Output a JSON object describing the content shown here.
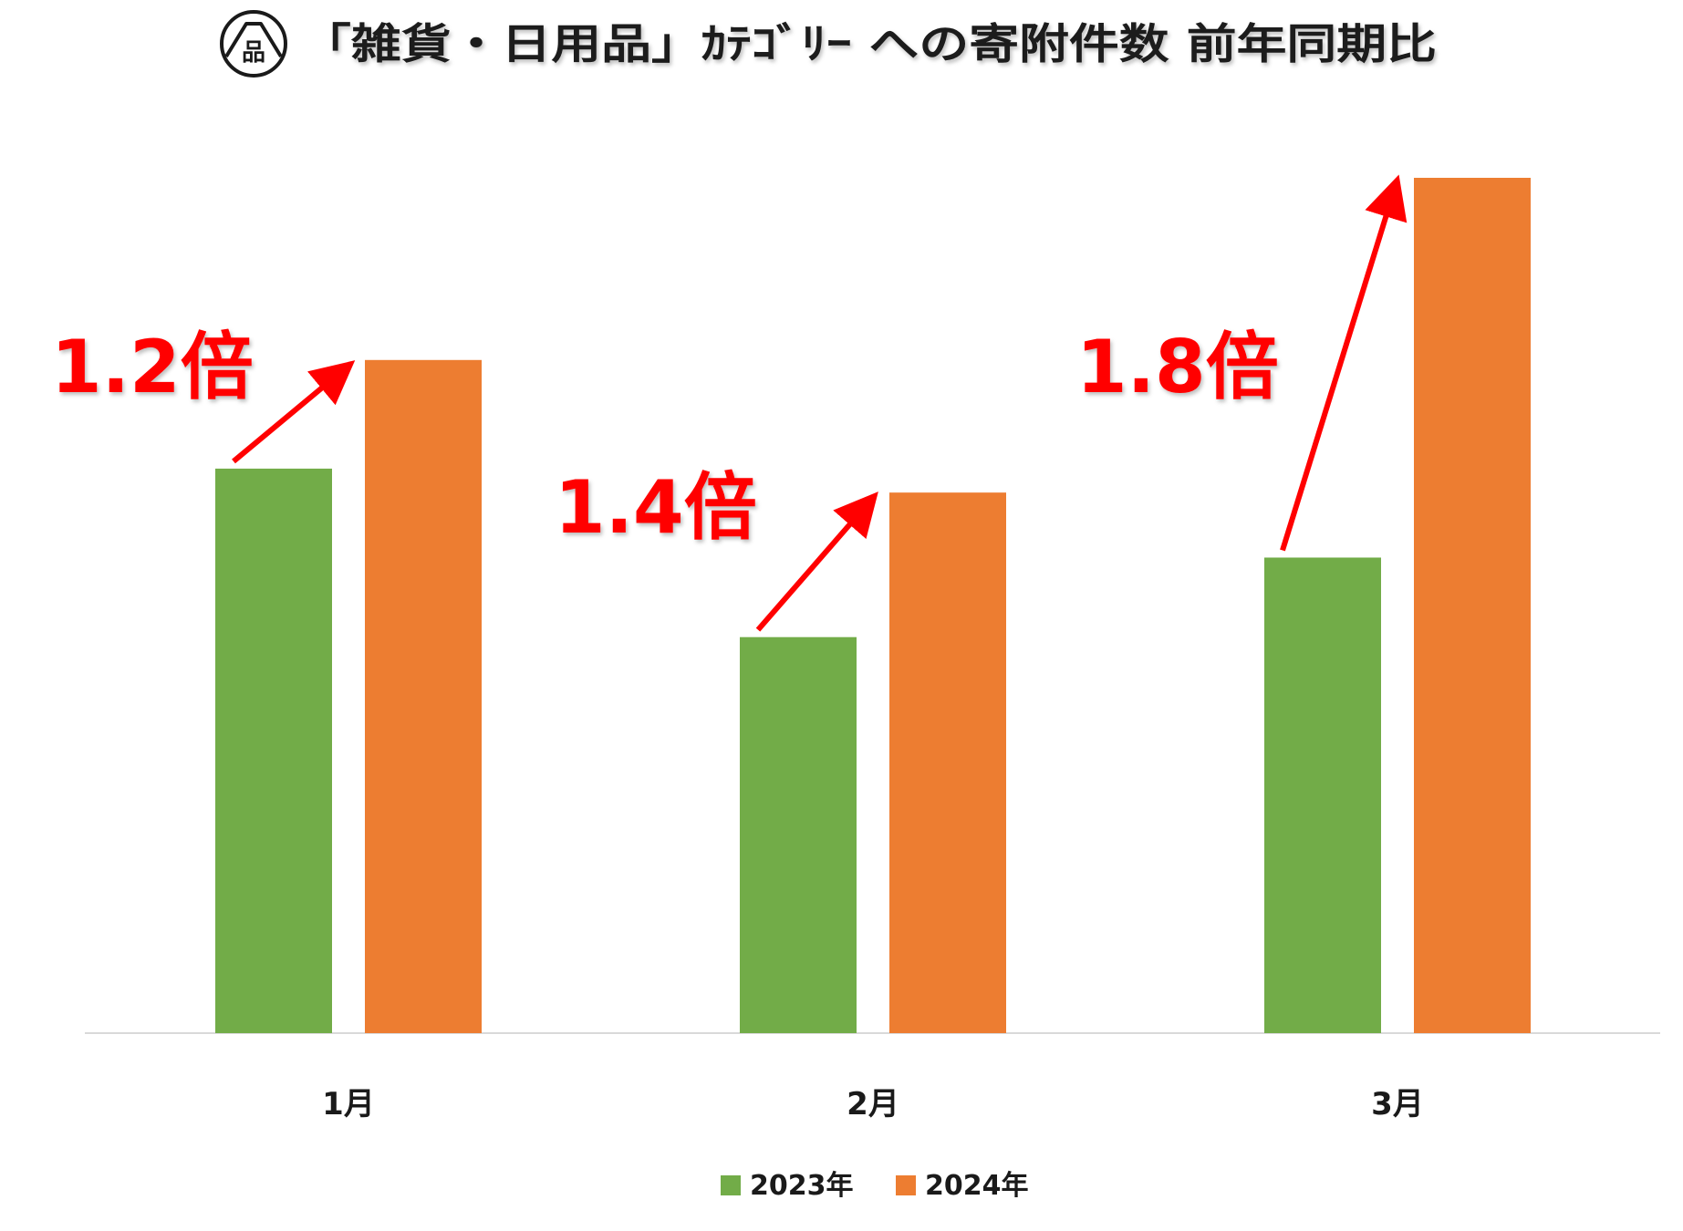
{
  "colors": {
    "series_2023": "#72ac48",
    "series_2024": "#ed7d31",
    "arrow": "#ff0000",
    "axis_line": "#d9d9d9",
    "logo": "#1a1a1a"
  },
  "logo": {
    "icon": "temple-roof-shina-logo-icon",
    "glyph": "品"
  },
  "chart_data": {
    "type": "bar",
    "title": "「雑貨・日用品」ｶﾃｺﾞﾘｰ への寄附件数 前年同期比",
    "categories": [
      "1月",
      "2月",
      "3月"
    ],
    "series": [
      {
        "name": "2023年",
        "values": [
          66,
          46.3,
          55.6
        ]
      },
      {
        "name": "2024年",
        "values": [
          78.7,
          63.2,
          100
        ]
      }
    ],
    "annotations": [
      {
        "category": "1月",
        "text": "1.2倍"
      },
      {
        "category": "2月",
        "text": "1.4倍"
      },
      {
        "category": "3月",
        "text": "1.8倍"
      }
    ],
    "ylim": [
      0,
      100
    ],
    "y_axis_visible": false,
    "grid": false,
    "legend_position": "bottom-center"
  }
}
